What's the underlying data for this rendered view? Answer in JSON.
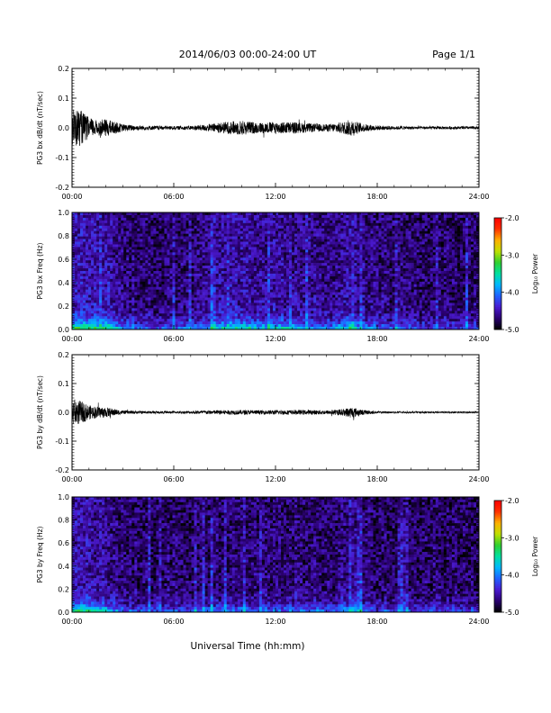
{
  "header": {
    "title": "2014/06/03  00:00-24:00 UT",
    "page": "Page 1/1"
  },
  "x_axis": {
    "title": "Universal Time (hh:mm)",
    "range_hours": [
      0,
      24
    ],
    "tick_labels": [
      "00:00",
      "06:00",
      "12:00",
      "18:00",
      "24:00"
    ]
  },
  "colorbar": {
    "label": "Log₁₀ Power",
    "range": [
      -5.0,
      -2.0
    ],
    "tick_labels": [
      "-2.0",
      "-3.0",
      "-4.0",
      "-5.0"
    ],
    "colors": [
      "#000000",
      "#2a0070",
      "#4a1ad0",
      "#2060ff",
      "#00b8ff",
      "#00e0a0",
      "#30d030",
      "#c0e000",
      "#ffb000",
      "#ff3000",
      "#ff0000"
    ]
  },
  "chart_data": [
    {
      "type": "line",
      "panel": "bx-waveform",
      "ylabel": "PG3 bx dB/dt (nT/sec)",
      "ylim": [
        -0.2,
        0.2
      ],
      "y_tick_labels": [
        "0.2",
        "0.1",
        "0.0",
        "-0.1",
        "-0.2"
      ],
      "envelope_hours": [
        0,
        0.5,
        1,
        1.5,
        2,
        3,
        4,
        5,
        6,
        7,
        8,
        9,
        10,
        11,
        12,
        13,
        14,
        15,
        16,
        16.5,
        17,
        18,
        19,
        20,
        21,
        22,
        23,
        24
      ],
      "envelope_amplitude": [
        0.07,
        0.06,
        0.035,
        0.025,
        0.03,
        0.012,
        0.008,
        0.007,
        0.006,
        0.007,
        0.012,
        0.02,
        0.025,
        0.018,
        0.02,
        0.02,
        0.015,
        0.012,
        0.02,
        0.03,
        0.015,
        0.008,
        0.006,
        0.005,
        0.005,
        0.005,
        0.005,
        0.005
      ]
    },
    {
      "type": "heatmap",
      "panel": "bx-spectrogram",
      "ylabel": "PG3 bx Freq (Hz)",
      "ylim": [
        0.0,
        1.0
      ],
      "y_tick_labels": [
        "1.0",
        "0.8",
        "0.6",
        "0.4",
        "0.2",
        "0.0"
      ],
      "zlim": [
        -5.0,
        -2.0
      ]
    },
    {
      "type": "line",
      "panel": "by-waveform",
      "ylabel": "PG3 by dB/dt (nT/sec)",
      "ylim": [
        -0.2,
        0.2
      ],
      "y_tick_labels": [
        "0.2",
        "0.1",
        "0.0",
        "-0.1",
        "-0.2"
      ],
      "envelope_hours": [
        0,
        0.5,
        1,
        1.5,
        2,
        3,
        4,
        5,
        6,
        7,
        8,
        9,
        10,
        11,
        12,
        13,
        14,
        15,
        16,
        16.5,
        17,
        18,
        19,
        20,
        21,
        22,
        23,
        24
      ],
      "envelope_amplitude": [
        0.05,
        0.04,
        0.025,
        0.02,
        0.018,
        0.006,
        0.005,
        0.004,
        0.004,
        0.005,
        0.007,
        0.008,
        0.008,
        0.007,
        0.008,
        0.008,
        0.008,
        0.007,
        0.012,
        0.02,
        0.01,
        0.004,
        0.003,
        0.003,
        0.003,
        0.003,
        0.003,
        0.003
      ]
    },
    {
      "type": "heatmap",
      "panel": "by-spectrogram",
      "ylabel": "PG3 by Freq (Hz)",
      "ylim": [
        0.0,
        1.0
      ],
      "y_tick_labels": [
        "1.0",
        "0.8",
        "0.6",
        "0.4",
        "0.2",
        "0.0"
      ],
      "zlim": [
        -5.0,
        -2.0
      ]
    }
  ]
}
